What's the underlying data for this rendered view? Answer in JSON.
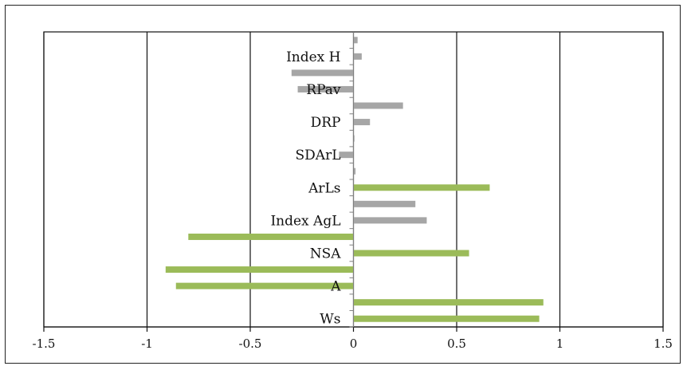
{
  "chart_data": {
    "type": "bar",
    "orientation": "horizontal",
    "title": "",
    "xlabel": "",
    "ylabel": "",
    "xlim": [
      -1.5,
      1.5
    ],
    "x_ticks": [
      -1.5,
      -1,
      -0.5,
      0,
      0.5,
      1,
      1.5
    ],
    "x_tick_labels": [
      "-1.5",
      "-1",
      "-0.5",
      "0",
      "0.5",
      "1",
      "1.5"
    ],
    "grid": "vertical major gridlines",
    "colors": {
      "green": "#9bbb59",
      "gray": "#a6a6a6"
    },
    "bars": [
      {
        "label": "Ws",
        "value": 0.9,
        "color": "green"
      },
      {
        "label": "",
        "value": 0.92,
        "color": "green"
      },
      {
        "label": "A",
        "value": -0.86,
        "color": "green"
      },
      {
        "label": "",
        "value": -0.91,
        "color": "green"
      },
      {
        "label": "NSA",
        "value": 0.56,
        "color": "green"
      },
      {
        "label": "",
        "value": -0.8,
        "color": "green"
      },
      {
        "label": "Index AgL",
        "value": 0.355,
        "color": "gray"
      },
      {
        "label": "",
        "value": 0.3,
        "color": "gray"
      },
      {
        "label": "ArLs",
        "value": 0.66,
        "color": "green"
      },
      {
        "label": "",
        "value": 0.01,
        "color": "gray"
      },
      {
        "label": "SDArL",
        "value": -0.07,
        "color": "gray"
      },
      {
        "label": "",
        "value": 0.005,
        "color": "gray"
      },
      {
        "label": "DRP",
        "value": 0.08,
        "color": "gray"
      },
      {
        "label": "",
        "value": 0.24,
        "color": "gray"
      },
      {
        "label": "RPav",
        "value": -0.27,
        "color": "gray"
      },
      {
        "label": "",
        "value": -0.3,
        "color": "gray"
      },
      {
        "label": "Index H",
        "value": 0.04,
        "color": "gray"
      },
      {
        "label": "",
        "value": 0.02,
        "color": "gray"
      }
    ]
  }
}
